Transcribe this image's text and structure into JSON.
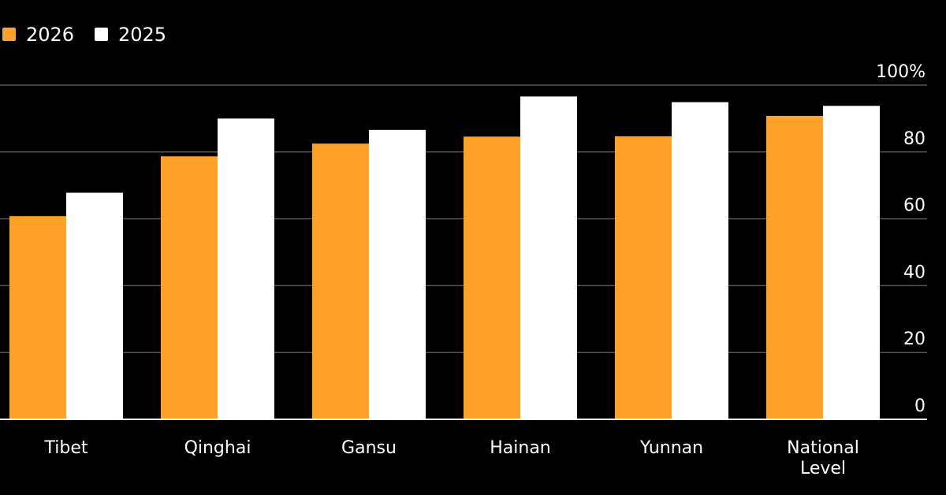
{
  "chart_data": {
    "type": "bar",
    "categories": [
      "Tibet",
      "Qinghai",
      "Gansu",
      "Hainan",
      "Yunnan",
      "National Level"
    ],
    "series": [
      {
        "name": "2026",
        "color": "#ffa028",
        "values": [
          60.8,
          78.7,
          82.5,
          84.6,
          84.7,
          90.8
        ]
      },
      {
        "name": "2025",
        "color": "#ffffff",
        "values": [
          67.8,
          90.0,
          86.6,
          96.6,
          94.9,
          93.8
        ]
      }
    ],
    "ylim": [
      0,
      100
    ],
    "yticks": [
      0,
      20,
      40,
      60,
      80,
      100
    ],
    "ytick_labels": [
      "0",
      "20",
      "40",
      "60",
      "80",
      "100%"
    ],
    "y_axis_position": "right",
    "grid": true,
    "legend_position": "top-left",
    "colors": {
      "background": "#000000",
      "gridline": "#555555",
      "baseline": "#ffffff",
      "text": "#ffffff"
    }
  }
}
